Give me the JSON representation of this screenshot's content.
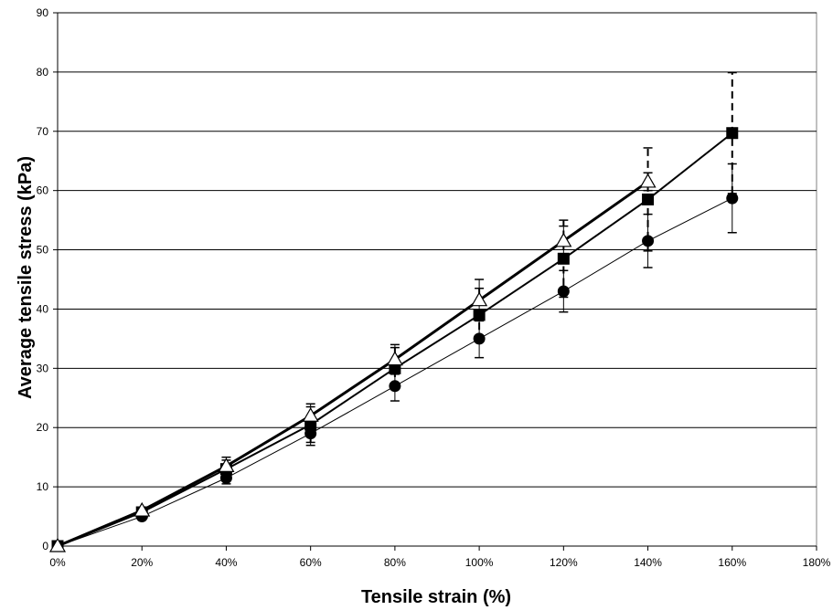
{
  "chart_data": {
    "type": "line",
    "title": "",
    "xlabel": "Tensile strain (%)",
    "ylabel": "Average tensile stress (kPa)",
    "xlim": [
      0,
      180
    ],
    "ylim": [
      0,
      90
    ],
    "x_ticks": [
      0,
      20,
      40,
      60,
      80,
      100,
      120,
      140,
      160,
      180
    ],
    "x_tick_labels": [
      "0%",
      "20%",
      "40%",
      "60%",
      "80%",
      "100%",
      "120%",
      "140%",
      "160%",
      "180%"
    ],
    "y_ticks": [
      0,
      10,
      20,
      30,
      40,
      50,
      60,
      70,
      80,
      90
    ],
    "y_tick_labels": [
      "0",
      "10",
      "20",
      "30",
      "40",
      "50",
      "60",
      "70",
      "80",
      "90"
    ],
    "grid": "horizontal",
    "legend": "none",
    "series": [
      {
        "marker": "circle",
        "line_style": "thin solid",
        "error_bar_style": "solid",
        "color": "#000000",
        "x": [
          0,
          20,
          40,
          60,
          80,
          100,
          120,
          140,
          160
        ],
        "y": [
          0,
          5,
          11.5,
          19,
          27,
          35,
          43,
          51.5,
          58.7
        ],
        "error": [
          0,
          0.5,
          1,
          2,
          2.5,
          3.2,
          3.5,
          4.5,
          5.8
        ]
      },
      {
        "marker": "square",
        "line_style": "medium solid",
        "error_bar_style": "dashed",
        "color": "#000000",
        "x": [
          0,
          20,
          40,
          60,
          80,
          100,
          120,
          140,
          160
        ],
        "y": [
          0,
          5.7,
          13,
          20.5,
          30,
          39,
          48.5,
          58.5,
          69.7
        ],
        "error": [
          0,
          0.5,
          1.5,
          3,
          3.5,
          4.5,
          6.5,
          8.7,
          10.2
        ]
      },
      {
        "marker": "triangle-open",
        "line_style": "thick solid",
        "error_bar_style": "solid",
        "color": "#000000",
        "x": [
          0,
          20,
          40,
          60,
          80,
          100,
          120,
          140
        ],
        "y": [
          0,
          6,
          13.5,
          22,
          31.5,
          41.5,
          51.5,
          61.5
        ],
        "error": [
          0,
          0.5,
          1.5,
          2,
          2.5,
          3.5,
          2.5,
          1.5
        ]
      }
    ]
  }
}
